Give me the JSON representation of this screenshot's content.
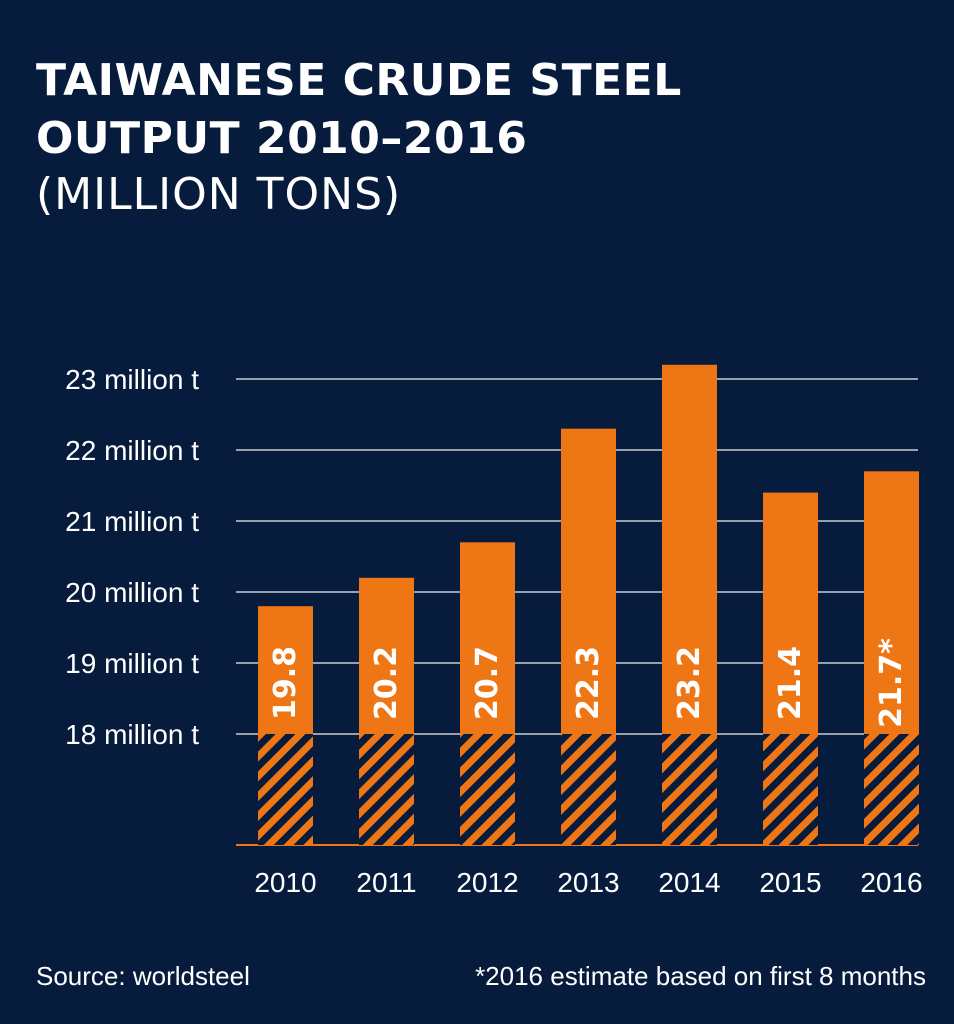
{
  "header": {
    "title_line1": "TAIWANESE CRUDE STEEL",
    "title_line2": "OUTPUT 2010–2016",
    "subtitle": "(MILLION TONS)"
  },
  "footer": {
    "source": "Source: worldsteel",
    "note": "*2016 estimate based on first 8 months"
  },
  "colors": {
    "background": "#071c3d",
    "bar": "#ee7614",
    "grid": "#c8ccd4",
    "text": "#ffffff"
  },
  "chart_data": {
    "type": "bar",
    "categories": [
      "2010",
      "2011",
      "2012",
      "2013",
      "2014",
      "2015",
      "2016"
    ],
    "values": [
      19.8,
      20.2,
      20.7,
      22.3,
      23.2,
      21.4,
      21.7
    ],
    "value_labels": [
      "19.8",
      "20.2",
      "20.7",
      "22.3",
      "23.2",
      "21.4",
      "21.7*"
    ],
    "y_ticks": [
      {
        "value": 23,
        "label": "23 million t"
      },
      {
        "value": 22,
        "label": "22 million t"
      },
      {
        "value": 21,
        "label": "21 million t"
      },
      {
        "value": 20,
        "label": "20 million t"
      },
      {
        "value": 19,
        "label": "19 million t"
      },
      {
        "value": 18,
        "label": "18 million t"
      }
    ],
    "axis_break_below": 18,
    "grid": true,
    "legend": "none"
  }
}
